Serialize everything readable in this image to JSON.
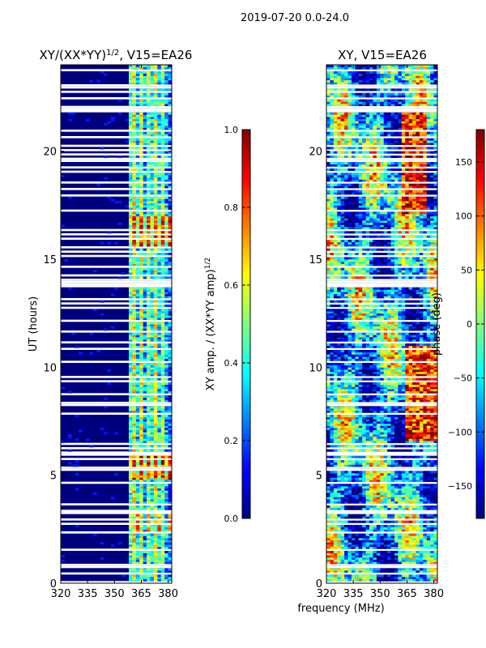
{
  "suptitle": "2019-07-20 0.0-24.0",
  "colors": {
    "jet_stops": [
      "#00007f",
      "#0000ff",
      "#007fff",
      "#00ffff",
      "#7fff7f",
      "#ffff00",
      "#ff7f00",
      "#ff0000",
      "#7f0000"
    ],
    "gap": "#ffffff",
    "axis": "#000000"
  },
  "chart_data": [
    {
      "type": "heatmap",
      "name": "amplitude-ratio",
      "title_main": "XY/(XX*YY)",
      "title_sup": "1/2",
      "title_suffix": ", V15=EA26",
      "xlabel": "",
      "ylabel": "UT (hours)",
      "xlim": [
        320,
        382
      ],
      "ylim": [
        0,
        24
      ],
      "xticks": [
        320,
        335,
        350,
        365,
        380
      ],
      "yticks": [
        0,
        5,
        10,
        15,
        20
      ],
      "colorbar": {
        "label_main": "XY amp. / (XX*YY amp)",
        "label_sup": "1/2",
        "range": [
          0,
          1
        ],
        "ticks": [
          0.0,
          0.2,
          0.4,
          0.6,
          0.8,
          1.0
        ],
        "tick_labels": [
          "0.0",
          "0.2",
          "0.4",
          "0.6",
          "0.8",
          "1.0"
        ]
      }
    },
    {
      "type": "heatmap",
      "name": "xy-phase",
      "title": "XY, V15=EA26",
      "xlabel": "frequency (MHz)",
      "ylabel": "",
      "xlim": [
        320,
        382
      ],
      "ylim": [
        0,
        24
      ],
      "xticks": [
        320,
        335,
        350,
        365,
        380
      ],
      "yticks": [
        0,
        5,
        10,
        15,
        20
      ],
      "colorbar": {
        "label": "phase (deg)",
        "range": [
          -180,
          180
        ],
        "ticks": [
          -150,
          -100,
          -50,
          0,
          50,
          100,
          150
        ],
        "tick_labels": [
          "−150",
          "−100",
          "−50",
          "0",
          "50",
          "100",
          "150"
        ]
      }
    }
  ]
}
